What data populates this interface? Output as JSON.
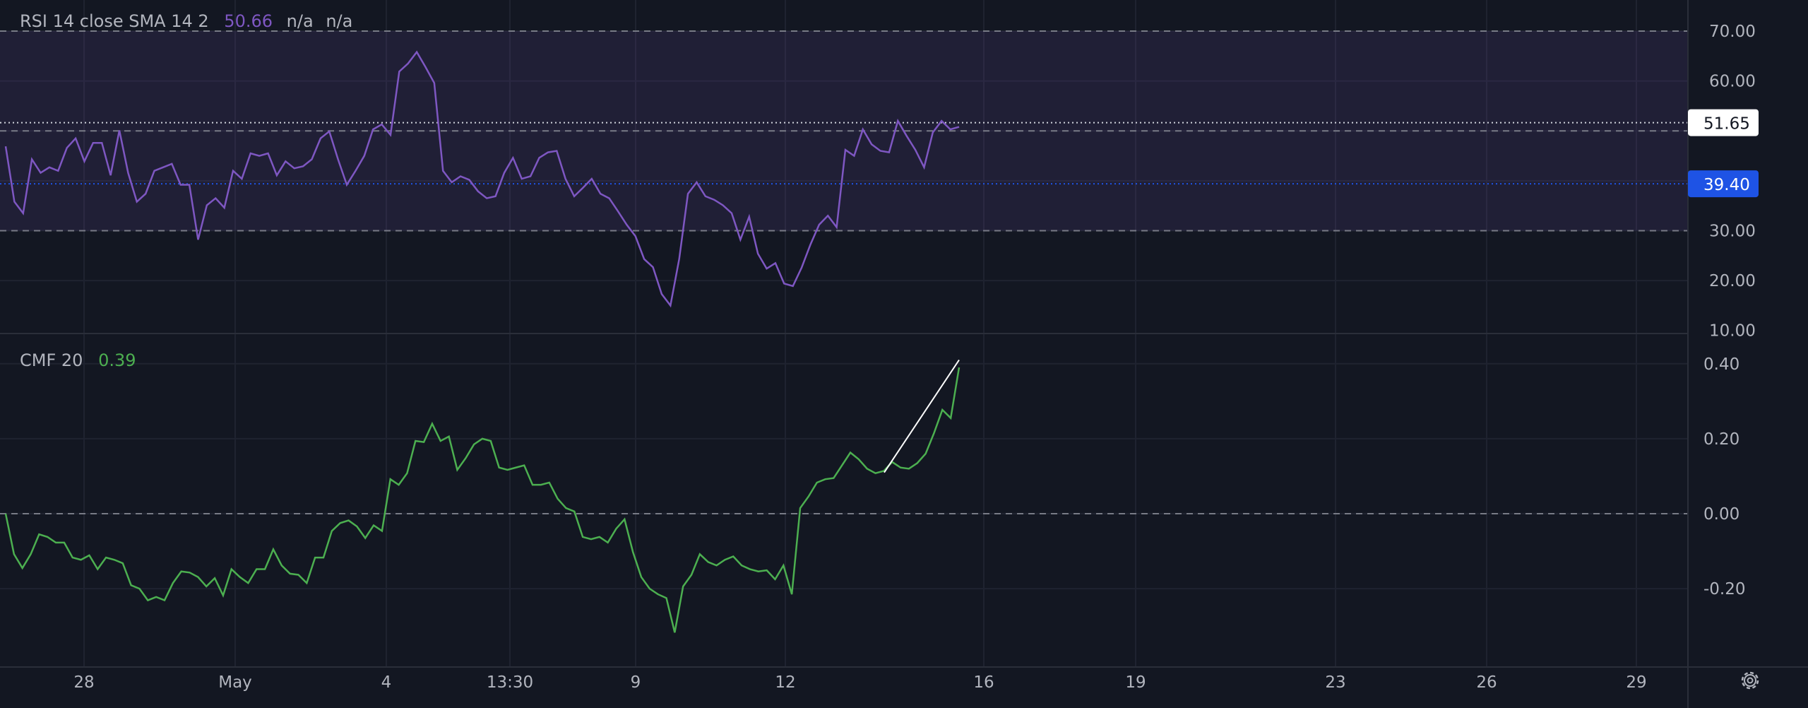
{
  "colors": {
    "background": "#131722",
    "rsi_line": "#7e57c2",
    "rsi_band": "#2a2440",
    "cmf_line": "#4caf50",
    "trendline": "#ffffff",
    "label_blue": "#1e53e5",
    "text": "#b2b5be"
  },
  "chart_data": [
    {
      "type": "line",
      "legend": {
        "name": "RSI 14 close SMA 14 2",
        "value": "50.66",
        "extra1": "n/a",
        "extra2": "n/a"
      },
      "y_ticks": [
        "70.00",
        "60.00",
        "30.00",
        "20.00",
        "10.00"
      ],
      "ylim": [
        10,
        72
      ],
      "band": [
        30,
        70
      ],
      "dashed_levels": [
        70,
        50,
        30
      ],
      "price_labels": [
        {
          "value": "51.65",
          "style": "white"
        },
        {
          "value": "39.40",
          "style": "blue"
        }
      ],
      "values": [
        46.9,
        35.8,
        33.5,
        44.3,
        41.6,
        42.7,
        42.0,
        46.6,
        48.5,
        43.9,
        47.6,
        47.6,
        41.1,
        50.1,
        41.6,
        35.8,
        37.4,
        42.0,
        42.7,
        43.4,
        39.2,
        39.2,
        28.2,
        35.1,
        36.5,
        34.6,
        42.0,
        40.4,
        45.5,
        45.0,
        45.5,
        41.1,
        43.9,
        42.5,
        42.9,
        44.3,
        48.5,
        49.9,
        44.3,
        39.2,
        42.0,
        45.0,
        50.3,
        51.3,
        49.2,
        61.9,
        63.5,
        65.8,
        62.8,
        59.6,
        42.0,
        39.7,
        40.9,
        40.2,
        37.9,
        36.5,
        36.9,
        41.6,
        44.6,
        40.4,
        40.9,
        44.6,
        45.7,
        46.0,
        40.4,
        36.9,
        38.6,
        40.4,
        37.4,
        36.5,
        33.9,
        31.2,
        28.9,
        24.3,
        22.7,
        17.3,
        15.0,
        24.3,
        37.4,
        39.7,
        36.9,
        36.2,
        35.1,
        33.5,
        28.2,
        32.8,
        25.4,
        22.4,
        23.5,
        19.4,
        18.9,
        22.6,
        27.2,
        31.2,
        33.0,
        30.7,
        46.2,
        45.0,
        50.3,
        47.3,
        46.0,
        45.7,
        52.0,
        49.0,
        46.2,
        42.7,
        49.7,
        52.0,
        50.3,
        50.8
      ]
    },
    {
      "type": "line",
      "legend": {
        "name": "CMF 20",
        "value": "0.39"
      },
      "y_ticks": [
        "0.40",
        "0.20",
        "0.00",
        "-0.20"
      ],
      "dashed_levels": [
        0
      ],
      "trendline": {
        "from": 0.11,
        "to": 0.41
      },
      "values": [
        0,
        -0.108,
        -0.145,
        -0.108,
        -0.055,
        -0.062,
        -0.077,
        -0.077,
        -0.117,
        -0.123,
        -0.111,
        -0.148,
        -0.117,
        -0.123,
        -0.132,
        -0.191,
        -0.2,
        -0.231,
        -0.222,
        -0.231,
        -0.185,
        -0.154,
        -0.157,
        -0.169,
        -0.194,
        -0.172,
        -0.218,
        -0.148,
        -0.169,
        -0.185,
        -0.148,
        -0.148,
        -0.095,
        -0.138,
        -0.16,
        -0.163,
        -0.185,
        -0.117,
        -0.117,
        -0.046,
        -0.025,
        -0.018,
        -0.034,
        -0.065,
        -0.031,
        -0.046,
        0.092,
        0.077,
        0.108,
        0.194,
        0.191,
        0.24,
        0.194,
        0.206,
        0.117,
        0.148,
        0.185,
        0.2,
        0.194,
        0.123,
        0.117,
        0.123,
        0.129,
        0.077,
        0.077,
        0.083,
        0.04,
        0.015,
        0.006,
        -0.062,
        -0.068,
        -0.062,
        -0.077,
        -0.04,
        -0.015,
        -0.102,
        -0.169,
        -0.2,
        -0.215,
        -0.225,
        -0.317,
        -0.194,
        -0.163,
        -0.108,
        -0.129,
        -0.138,
        -0.123,
        -0.114,
        -0.138,
        -0.148,
        -0.154,
        -0.151,
        -0.175,
        -0.138,
        -0.215,
        0.015,
        0.046,
        0.083,
        0.092,
        0.095,
        0.129,
        0.163,
        0.145,
        0.12,
        0.108,
        0.114,
        0.138,
        0.123,
        0.12,
        0.135,
        0.16,
        0.215,
        0.277,
        0.255,
        0.39
      ]
    }
  ],
  "x_ticks": [
    "28",
    "May",
    "4",
    "13:30",
    "9",
    "12",
    "16",
    "19",
    "23",
    "26",
    "29"
  ],
  "settings_icon": "gear-icon"
}
